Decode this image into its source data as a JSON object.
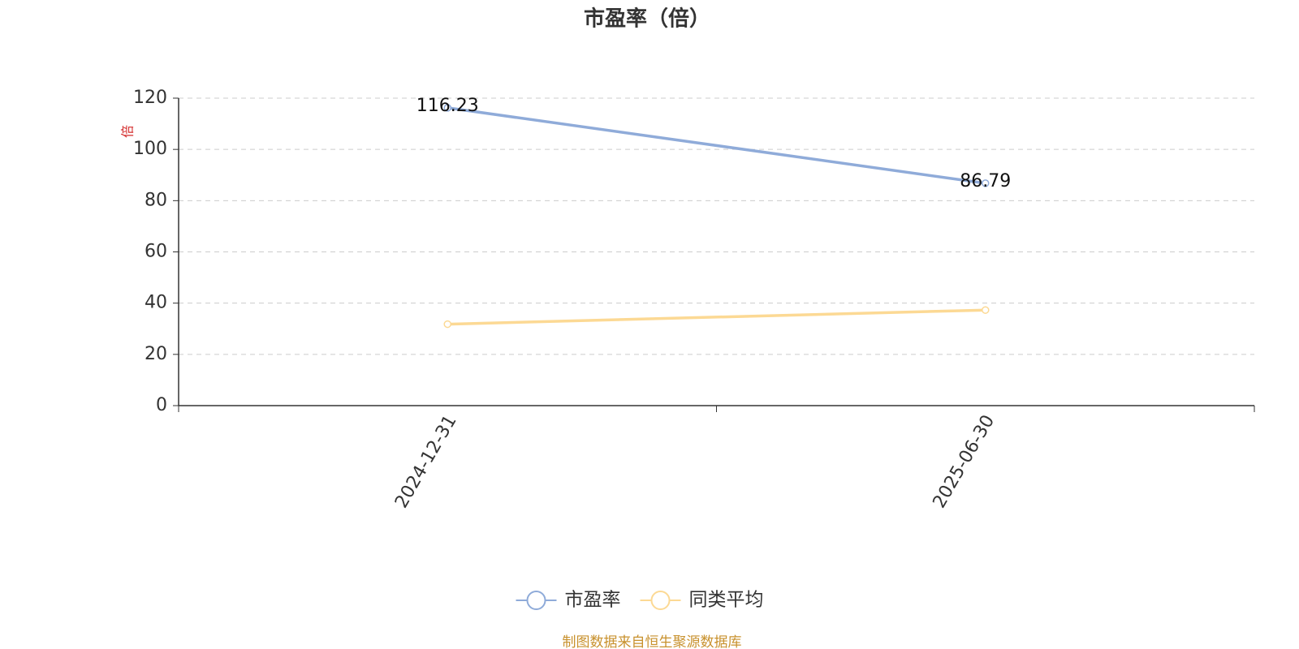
{
  "chart_data": {
    "type": "line",
    "title": "市盈率（倍）",
    "y_label": "倍",
    "categories": [
      "2024-12-31",
      "2025-06-30"
    ],
    "series": [
      {
        "name": "市盈率",
        "color": "#8fabd9",
        "values": [
          116.23,
          86.79
        ],
        "show_labels": true
      },
      {
        "name": "同类平均",
        "color": "#fcd994",
        "values": [
          31.8,
          37.3
        ],
        "show_labels": false
      }
    ],
    "ylim": [
      0,
      120
    ],
    "yticks": [
      0,
      20,
      40,
      60,
      80,
      100,
      120
    ],
    "grid": true,
    "legend": "bottom",
    "source": "制图数据来自恒生聚源数据库"
  }
}
